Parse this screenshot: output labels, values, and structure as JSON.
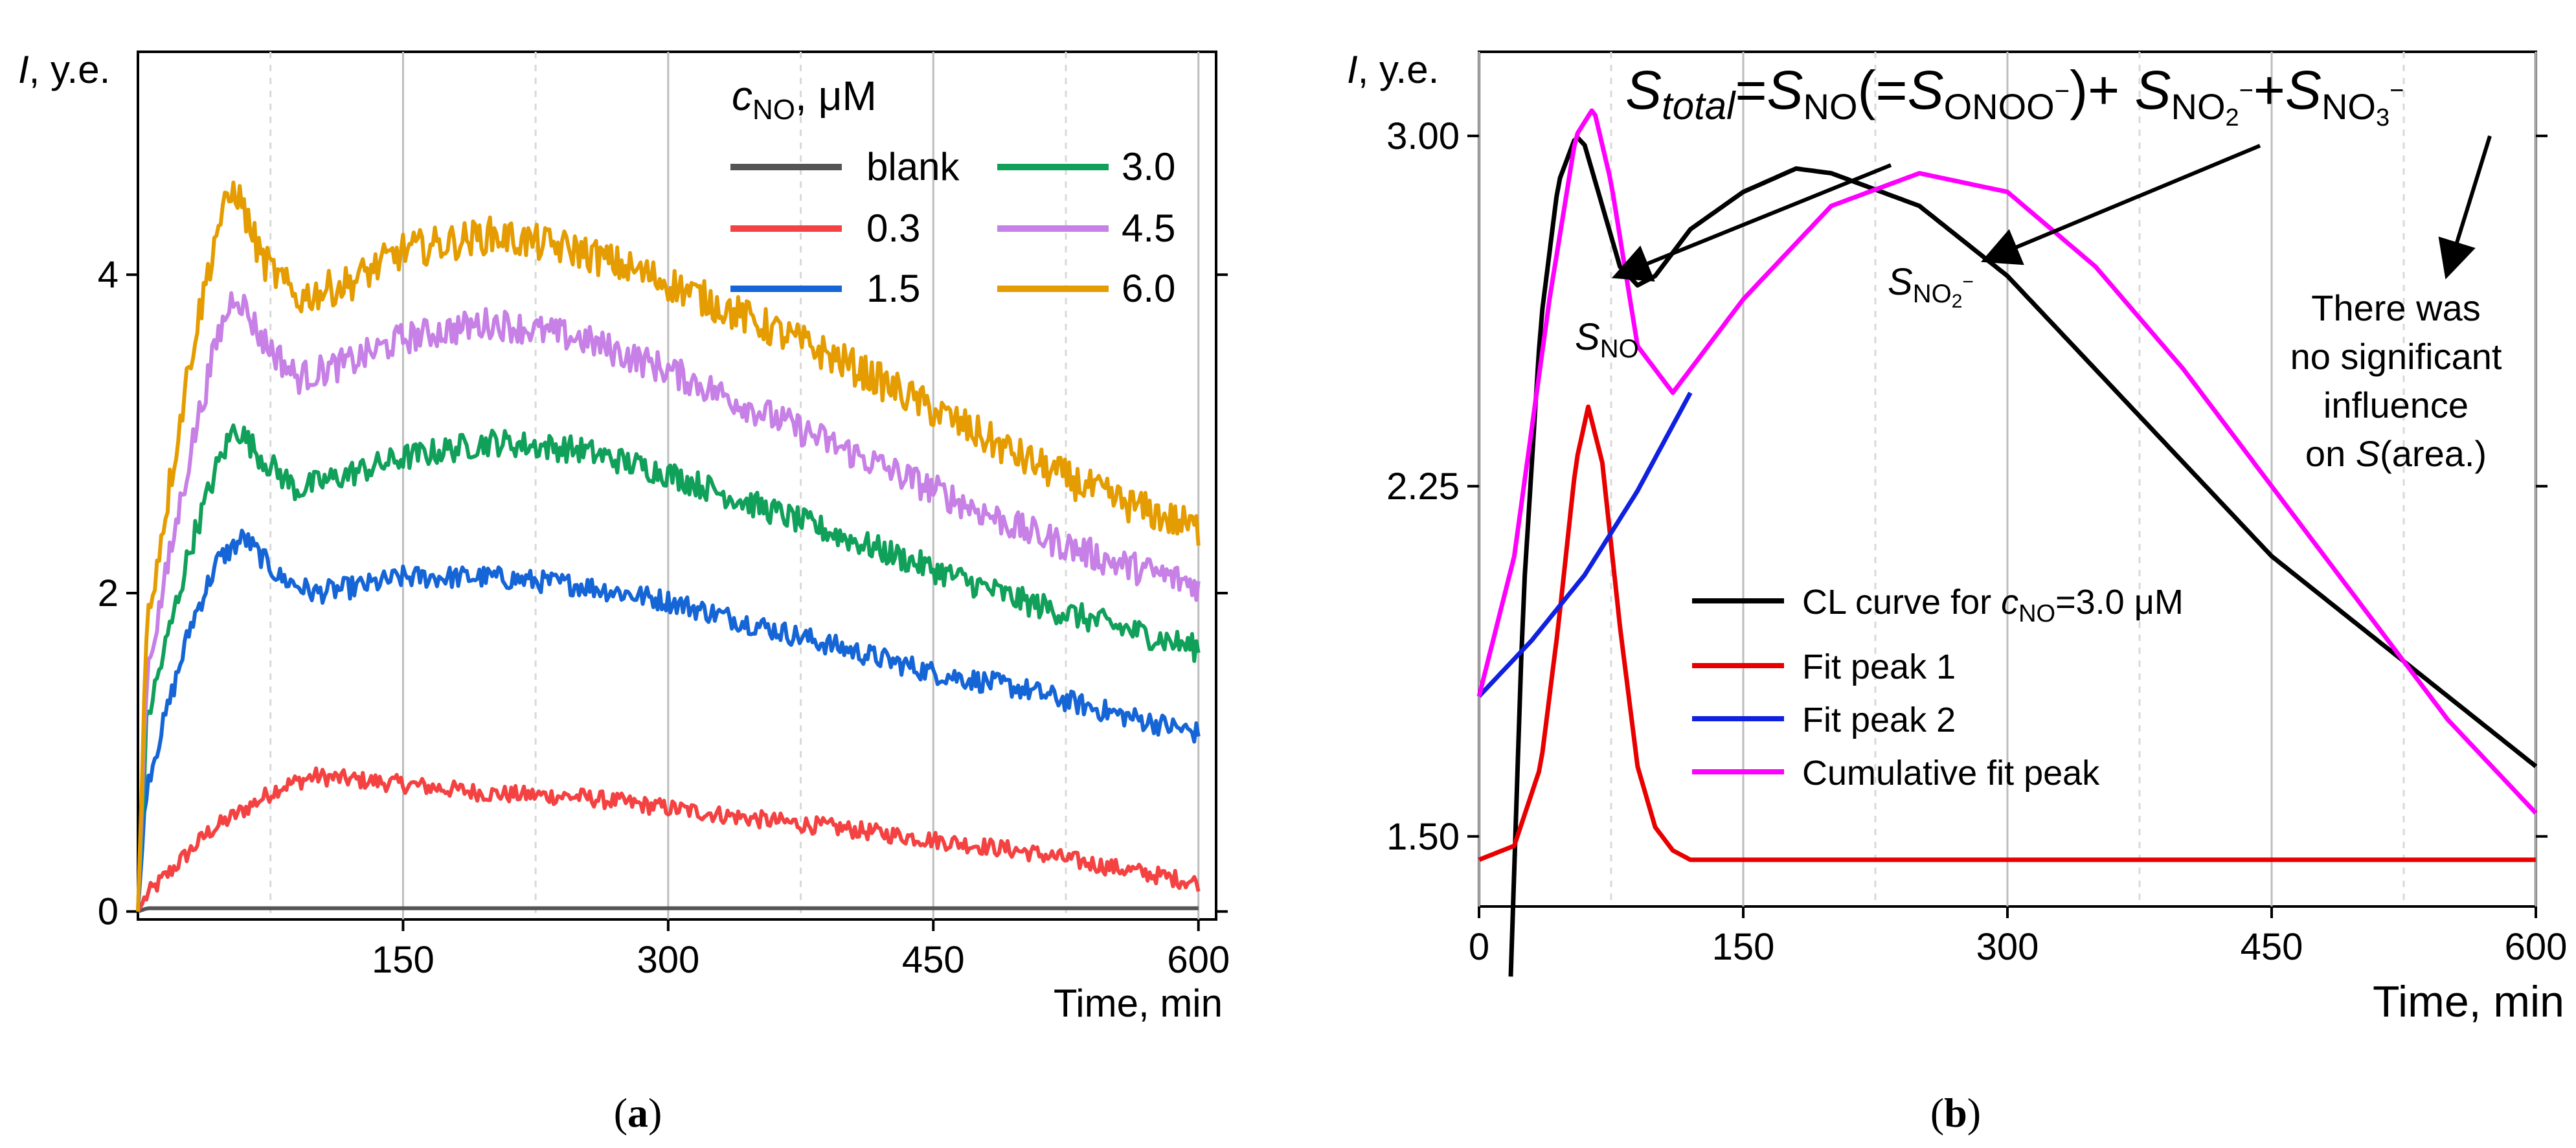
{
  "panel_a": {
    "caption": "a",
    "chart_data": {
      "type": "line",
      "title": "",
      "xlabel": "Time, min",
      "ylabel_symbol": "I",
      "ylabel_unit": ", y.e.",
      "xlim": [
        0,
        610
      ],
      "ylim": [
        -0.05,
        5.4
      ],
      "xticks": [
        150,
        300,
        450,
        600
      ],
      "yticks": [
        0,
        2,
        4
      ],
      "legend_title_symbol": "c",
      "legend_title_sub": "NO",
      "legend_title_unit": ", μM",
      "series": [
        {
          "name": "blank",
          "color": "#555555",
          "x": [
            0,
            5,
            600
          ],
          "values": [
            0,
            0.02,
            0.02
          ]
        },
        {
          "name": "0.3",
          "color": "#f44242",
          "x": [
            0,
            5,
            40,
            80,
            100,
            150,
            200,
            250,
            300,
            350,
            400,
            450,
            500,
            550,
            600
          ],
          "values": [
            0,
            0.1,
            0.5,
            0.78,
            0.85,
            0.8,
            0.74,
            0.72,
            0.65,
            0.58,
            0.52,
            0.45,
            0.38,
            0.28,
            0.18
          ]
        },
        {
          "name": "1.5",
          "color": "#1565d6",
          "x": [
            0,
            5,
            30,
            45,
            60,
            80,
            100,
            130,
            150,
            200,
            250,
            300,
            350,
            400,
            450,
            500,
            550,
            600
          ],
          "values": [
            0,
            0.8,
            1.8,
            2.2,
            2.35,
            2.1,
            2.0,
            2.05,
            2.1,
            2.1,
            2.05,
            1.95,
            1.8,
            1.65,
            1.5,
            1.4,
            1.25,
            1.12
          ]
        },
        {
          "name": "3.0",
          "color": "#10a05a",
          "x": [
            0,
            5,
            30,
            45,
            55,
            70,
            90,
            120,
            150,
            200,
            250,
            300,
            350,
            400,
            450,
            500,
            550,
            600
          ],
          "values": [
            0,
            1.2,
            2.3,
            2.8,
            3.05,
            2.85,
            2.65,
            2.75,
            2.85,
            2.95,
            2.9,
            2.75,
            2.55,
            2.35,
            2.15,
            1.95,
            1.8,
            1.65
          ]
        },
        {
          "name": "4.5",
          "color": "#c680e6",
          "x": [
            0,
            5,
            30,
            45,
            55,
            70,
            90,
            120,
            150,
            200,
            250,
            300,
            350,
            400,
            450,
            500,
            550,
            600
          ],
          "values": [
            0,
            1.5,
            2.9,
            3.6,
            3.9,
            3.6,
            3.35,
            3.45,
            3.6,
            3.7,
            3.6,
            3.4,
            3.15,
            2.9,
            2.65,
            2.4,
            2.2,
            2.05
          ]
        },
        {
          "name": "6.0",
          "color": "#e59c00",
          "x": [
            0,
            5,
            30,
            45,
            55,
            70,
            90,
            120,
            150,
            200,
            250,
            300,
            350,
            400,
            450,
            500,
            550,
            600
          ],
          "values": [
            0,
            1.8,
            3.5,
            4.3,
            4.55,
            4.1,
            3.85,
            3.95,
            4.15,
            4.25,
            4.15,
            3.95,
            3.7,
            3.45,
            3.15,
            2.85,
            2.6,
            2.4
          ]
        }
      ]
    }
  },
  "panel_b": {
    "caption": "b",
    "chart_data": {
      "type": "line",
      "title": "",
      "xlabel": "Time, min",
      "ylabel_symbol": "I",
      "ylabel_unit": ", y.e.",
      "xlim": [
        0,
        600
      ],
      "ylim": [
        1.35,
        3.18
      ],
      "xticks": [
        0,
        150,
        300,
        450,
        600
      ],
      "yticks": [
        1.5,
        2.25,
        3.0
      ],
      "ytick_labels": [
        "1.50",
        "2.25",
        "3.00"
      ],
      "series": [
        {
          "name": "CL curve for c_NO=3.0 μM",
          "legend_prefix": "CL curve for ",
          "legend_symbol": "c",
          "legend_sub": "NO",
          "legend_suffix": "=3.0 μM",
          "color": "#000000",
          "x": [
            18,
            25,
            35,
            45,
            55,
            60,
            70,
            80,
            90,
            100,
            120,
            150,
            180,
            200,
            250,
            300,
            350,
            400,
            450,
            500,
            550,
            600
          ],
          "values": [
            1.2,
            2.0,
            2.6,
            2.9,
            3.0,
            2.98,
            2.85,
            2.72,
            2.68,
            2.7,
            2.8,
            2.88,
            2.93,
            2.92,
            2.85,
            2.7,
            2.5,
            2.3,
            2.1,
            1.95,
            1.8,
            1.65
          ]
        },
        {
          "name": "Fit peak 1",
          "color": "#e80000",
          "x": [
            0,
            20,
            35,
            45,
            55,
            62,
            70,
            80,
            90,
            100,
            110,
            120,
            140,
            600
          ],
          "values": [
            1.45,
            1.48,
            1.65,
            1.95,
            2.3,
            2.42,
            2.3,
            1.95,
            1.65,
            1.52,
            1.47,
            1.45,
            1.45,
            1.45
          ]
        },
        {
          "name": "Fit peak 2",
          "color": "#1020e0",
          "x": [
            0,
            30,
            60,
            90,
            120
          ],
          "values": [
            1.8,
            1.92,
            2.06,
            2.24,
            2.45
          ]
        },
        {
          "name": "Cumulative fit peak",
          "color": "#ff00ff",
          "x": [
            0,
            20,
            40,
            55,
            65,
            75,
            90,
            110,
            130,
            150,
            200,
            250,
            300,
            350,
            400,
            450,
            500,
            550,
            600
          ],
          "values": [
            1.8,
            2.1,
            2.65,
            3.0,
            3.06,
            2.9,
            2.55,
            2.45,
            2.55,
            2.65,
            2.85,
            2.92,
            2.88,
            2.72,
            2.5,
            2.25,
            2.0,
            1.75,
            1.55
          ]
        }
      ],
      "annotations": {
        "equation": {
          "s1": "S",
          "total": "total",
          "eq1": "=",
          "s2": "S",
          "no": "NO",
          "paren_open": "(=",
          "s3": "S",
          "onoo": "ONOO",
          "minus1": "−",
          "paren_close": ")+ ",
          "s4": "S",
          "no2": "NO",
          "sub2": "2",
          "minus2": "−",
          "plus": "+",
          "s5": "S",
          "no3": "NO",
          "sub3": "3",
          "minus3": "−"
        },
        "s_no_label": {
          "s": "S",
          "sub": "NO"
        },
        "s_no2_label": {
          "s": "S",
          "sub": "NO",
          "sub2": "2",
          "sup": "−"
        },
        "note_lines": [
          "There was",
          "no significant",
          "influence"
        ],
        "note_last_prefix": "on ",
        "note_last_symbol": "S",
        "note_last_suffix": "(area.)"
      }
    }
  }
}
